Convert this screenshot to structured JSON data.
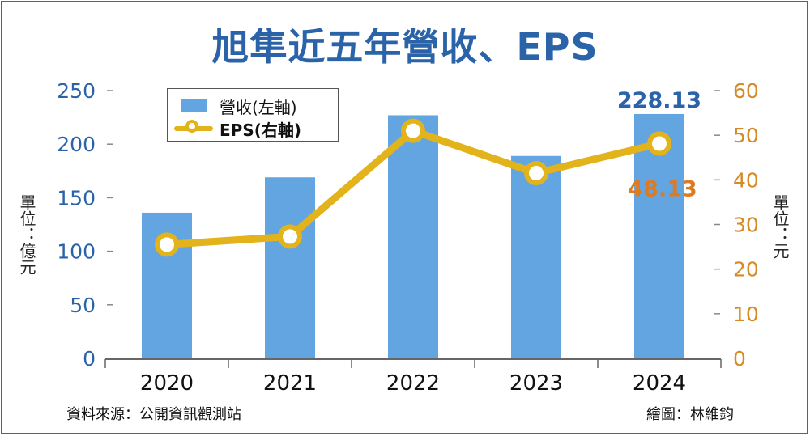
{
  "chart_data": {
    "type": "bar",
    "title": "旭隼近五年營收、EPS",
    "categories": [
      "2020",
      "2021",
      "2022",
      "2023",
      "2024"
    ],
    "series": [
      {
        "name": "營收(左軸)",
        "type": "bar",
        "axis": "left",
        "values": [
          136,
          169,
          227,
          189,
          228.13
        ],
        "color": "#63a5e0"
      },
      {
        "name": "EPS(右軸)",
        "type": "line",
        "axis": "right",
        "values": [
          25.5,
          27.3,
          51.0,
          41.5,
          48.13
        ],
        "color": "#e2b31a"
      }
    ],
    "left_axis": {
      "label": "單位：億元",
      "ylim": [
        0,
        250
      ],
      "ticks": [
        "0",
        "50",
        "100",
        "150",
        "200",
        "250"
      ]
    },
    "right_axis": {
      "label": "單位：元",
      "ylim": [
        0,
        60
      ],
      "ticks": [
        "0",
        "10",
        "20",
        "30",
        "40",
        "50",
        "60"
      ]
    },
    "annotations": {
      "bar_2024_label": "228.13",
      "eps_2024_label": "48.13"
    },
    "legend_position": "top-left",
    "grid": false
  },
  "footer": {
    "source": "資料來源：公開資訊觀測站",
    "credit": "繪圖：林維鈞"
  },
  "colors": {
    "title": "#2b63a8",
    "left_axis_text": "#2b63a8",
    "right_axis_text": "#d58a26",
    "eps_label": "#e07a1f",
    "bar_label": "#2b63a8",
    "frame": "#e9252e"
  }
}
